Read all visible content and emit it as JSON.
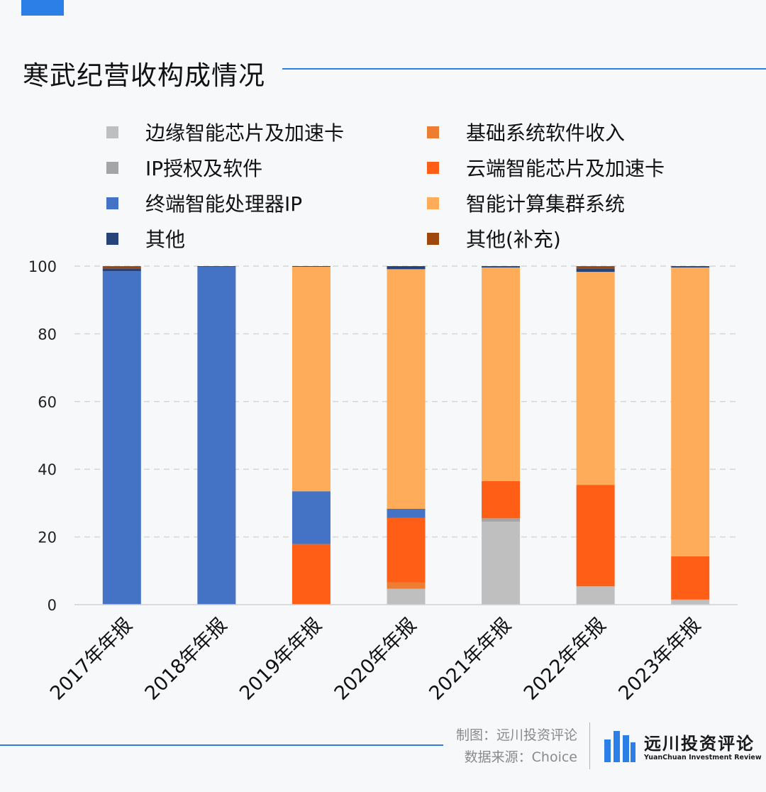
{
  "header": {
    "title": "寒武纪营收构成情况"
  },
  "legend": {
    "items": [
      {
        "label": "边缘智能芯片及加速卡",
        "color": "#bfbfbf"
      },
      {
        "label": "基础系统软件收入",
        "color": "#ed7d31"
      },
      {
        "label": "IP授权及软件",
        "color": "#a5a5a5"
      },
      {
        "label": "云端智能芯片及加速卡",
        "color": "#ff5e16"
      },
      {
        "label": "终端智能处理器IP",
        "color": "#4472c4"
      },
      {
        "label": "智能计算集群系统",
        "color": "#ffac5a"
      },
      {
        "label": "其他",
        "color": "#264478"
      },
      {
        "label": "其他(补充)",
        "color": "#9e480e"
      }
    ]
  },
  "chart_data": {
    "type": "bar",
    "stacked": true,
    "title": "寒武纪营收构成情况",
    "xlabel": "",
    "ylabel": "",
    "ylim": [
      0,
      100
    ],
    "yticks": [
      0,
      20,
      40,
      60,
      80,
      100
    ],
    "grid": true,
    "legend_position": "top",
    "categories": [
      "2017年年报",
      "2018年年报",
      "2019年年报",
      "2020年年报",
      "2021年年报",
      "2022年年报",
      "2023年年报"
    ],
    "series": [
      {
        "name": "边缘智能芯片及加速卡",
        "color": "#bfbfbf",
        "values": [
          0,
          0,
          0,
          4.7,
          24.5,
          5.4,
          1.5
        ]
      },
      {
        "name": "基础系统软件收入",
        "color": "#ed7d31",
        "values": [
          0,
          0,
          0,
          1.9,
          0,
          0,
          0
        ]
      },
      {
        "name": "IP授权及软件",
        "color": "#a5a5a5",
        "values": [
          0,
          0,
          0,
          0,
          1.0,
          0,
          0
        ]
      },
      {
        "name": "云端智能芯片及加速卡",
        "color": "#ff5e16",
        "values": [
          0,
          0,
          17.9,
          19.0,
          11.0,
          30.0,
          12.8
        ]
      },
      {
        "name": "终端智能处理器IP",
        "color": "#4472c4",
        "values": [
          98.5,
          99.9,
          15.6,
          2.7,
          0,
          0,
          0
        ]
      },
      {
        "name": "智能计算集群系统",
        "color": "#ffac5a",
        "values": [
          0,
          0,
          66.3,
          70.8,
          63.1,
          62.9,
          85.3
        ]
      },
      {
        "name": "其他",
        "color": "#264478",
        "values": [
          0.8,
          0.1,
          0.2,
          0.9,
          0.4,
          1.0,
          0.4
        ]
      },
      {
        "name": "其他(补充)",
        "color": "#9e480e",
        "values": [
          0.7,
          0,
          0,
          0,
          0,
          0.7,
          0
        ]
      }
    ]
  },
  "footer": {
    "credit_line1": "制图：远川投资评论",
    "credit_line2": "数据来源：Choice",
    "brand_cn": "远川投资评论",
    "brand_en": "YuanChuan Investment Review"
  }
}
